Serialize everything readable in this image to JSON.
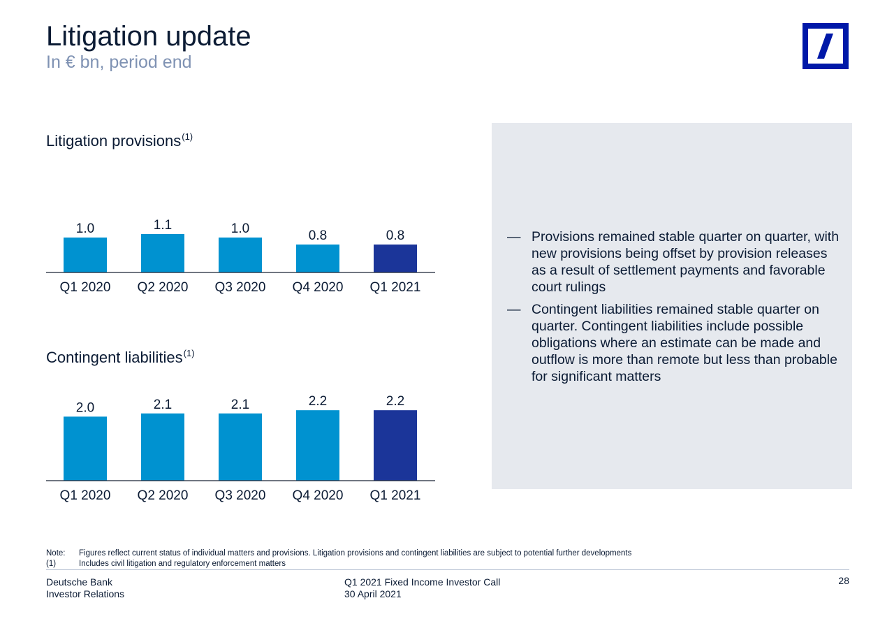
{
  "header": {
    "title": "Litigation update",
    "subtitle": "In € bn, period end"
  },
  "logo": {
    "name": "Deutsche Bank logo",
    "color": "#0018a8"
  },
  "colors": {
    "bar": "#0092d0",
    "highlight": "#1b3599",
    "panel": "#e6e9ee"
  },
  "chart_data": [
    {
      "type": "bar",
      "title": "Litigation provisions",
      "title_sup": "(1)",
      "categories": [
        "Q1 2020",
        "Q2 2020",
        "Q3 2020",
        "Q4 2020",
        "Q1 2021"
      ],
      "values": [
        1.0,
        1.1,
        1.0,
        0.8,
        0.8
      ],
      "value_labels": [
        "1.0",
        "1.1",
        "1.0",
        "0.8",
        "0.8"
      ],
      "highlight_index": 4,
      "xlabel": "",
      "ylabel": "",
      "ylim": [
        0,
        1.2
      ],
      "grid": false
    },
    {
      "type": "bar",
      "title": "Contingent liabilities",
      "title_sup": "(1)",
      "categories": [
        "Q1 2020",
        "Q2 2020",
        "Q3 2020",
        "Q4 2020",
        "Q1 2021"
      ],
      "values": [
        2.0,
        2.1,
        2.1,
        2.2,
        2.2
      ],
      "value_labels": [
        "2.0",
        "2.1",
        "2.1",
        "2.2",
        "2.2"
      ],
      "highlight_index": 4,
      "xlabel": "",
      "ylabel": "",
      "ylim": [
        0,
        2.4
      ],
      "grid": false
    }
  ],
  "panel": {
    "bullets": [
      {
        "dash": "—",
        "text": "Provisions remained stable quarter on quarter, with new provisions being offset by provision releases as a result of settlement payments and favorable court rulings"
      },
      {
        "dash": "—",
        "text": "Contingent liabilities remained stable quarter on quarter. Contingent liabilities include possible obligations where an estimate can be made and outflow is more than remote but less than probable for significant matters"
      }
    ]
  },
  "notes": [
    {
      "label": "Note:",
      "text": "Figures reflect current status of individual matters and provisions. Litigation provisions and contingent liabilities are subject to potential further developments"
    },
    {
      "label": "(1)",
      "text": "Includes civil litigation and regulatory enforcement matters"
    }
  ],
  "footer": {
    "company": "Deutsche Bank",
    "department": "Investor Relations",
    "event": "Q1 2021 Fixed Income Investor Call",
    "date": "30 April 2021",
    "page": "28"
  }
}
